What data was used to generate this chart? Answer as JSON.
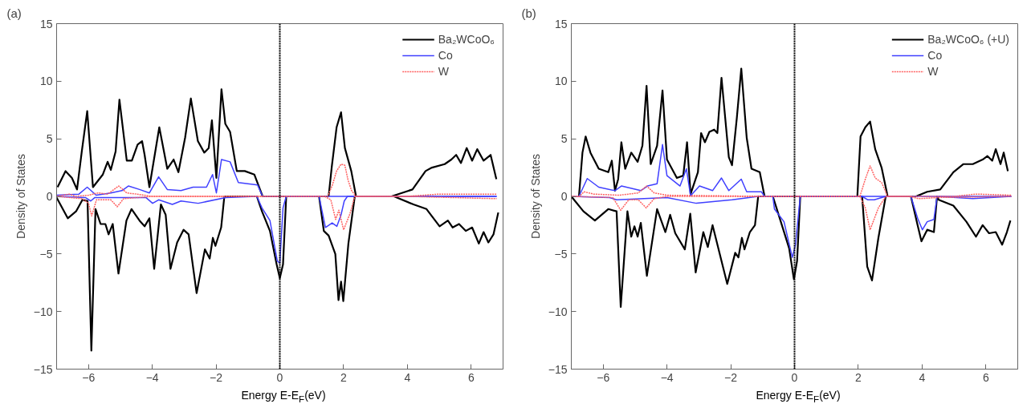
{
  "chart_data": [
    {
      "type": "line",
      "title": "(a)",
      "xlabel": "Energy E-E$_{F}$(eV)",
      "ylabel": "Density of States",
      "xlim": [
        -7,
        7
      ],
      "ylim": [
        -15,
        15
      ],
      "xticks": [
        -6,
        -4,
        -2,
        0,
        2,
        4,
        6
      ],
      "yticks": [
        -15,
        -10,
        -5,
        0,
        5,
        10,
        15
      ],
      "grid": false,
      "legend": "top right",
      "ref_lines": [
        {
          "axis": "x",
          "value": 0,
          "color": "#000000",
          "line_style": "dotted"
        }
      ],
      "series": [
        {
          "name": "Ba₂WCoO₆",
          "color": "#000000",
          "line_style": "solid",
          "x": [
            -6.97,
            -6.72,
            -6.52,
            -6.36,
            -6.21,
            -6.04,
            -5.86,
            -5.55,
            -5.4,
            -5.3,
            -5.15,
            -5.03,
            -4.8,
            -4.64,
            -4.46,
            -4.32,
            -4.24,
            -4.09,
            -3.78,
            -3.53,
            -3.33,
            -3.18,
            -2.97,
            -2.79,
            -2.57,
            -2.37,
            -2.23,
            -2.13,
            -1.99,
            -1.83,
            -1.71,
            -1.56,
            -1.35,
            -1.1,
            -0.8,
            -0.54,
            1.53,
            1.63,
            1.78,
            1.92,
            2.04,
            2.24,
            2.39,
            3.5,
            4.16,
            4.57,
            4.77,
            5.17,
            5.38,
            5.53,
            5.68,
            5.86,
            6.03,
            6.19,
            6.39,
            6.61,
            6.79
          ],
          "values": [
            0.8,
            2.2,
            1.6,
            0.6,
            3.9,
            7.4,
            0.8,
            1.9,
            3.0,
            2.3,
            3.9,
            8.4,
            3.1,
            3.1,
            4.5,
            4.8,
            3.6,
            0.8,
            6.0,
            2.4,
            3.2,
            2.1,
            5.1,
            8.5,
            4.8,
            3.8,
            4.2,
            6.6,
            1.6,
            9.3,
            6.3,
            5.6,
            2.2,
            2.2,
            1.9,
            0,
            0,
            2.6,
            6.0,
            7.3,
            4.2,
            2.2,
            0,
            0,
            0.6,
            2.2,
            2.5,
            2.8,
            3.2,
            3.6,
            2.9,
            4.2,
            3.1,
            4.1,
            3.1,
            3.6,
            1.5
          ]
        },
        {
          "color": "#000000",
          "line_style": "solid",
          "x": [
            -7.0,
            -6.65,
            -6.39,
            -6.19,
            -6.03,
            -5.91,
            -5.78,
            -5.62,
            -5.47,
            -5.37,
            -5.24,
            -5.06,
            -4.81,
            -4.65,
            -4.4,
            -4.24,
            -4.09,
            -3.94,
            -3.73,
            -3.58,
            -3.43,
            -3.22,
            -3.02,
            -2.86,
            -2.61,
            -2.35,
            -2.2,
            -2.1,
            -2.02,
            -1.84,
            -1.74,
            -0.72,
            -0.56,
            -0.31,
            -0.1,
            0.0,
            0.1,
            0.2,
            1.23,
            1.38,
            1.53,
            1.74,
            1.84,
            1.92,
            1.99,
            2.15,
            2.35,
            3.58,
            4.19,
            4.6,
            5.01,
            5.27,
            5.42,
            5.62,
            5.83,
            6.03,
            6.24,
            6.39,
            6.54,
            6.7,
            6.85
          ],
          "values": [
            -0.1,
            -1.9,
            -1.3,
            -0.3,
            -0.4,
            -13.4,
            -1.1,
            -2.4,
            -2.4,
            -3.3,
            -2.4,
            -6.7,
            -2.1,
            -1.1,
            -2.1,
            -2.6,
            -1.9,
            -6.3,
            -0.7,
            -1.6,
            -6.3,
            -4.0,
            -2.9,
            -3.3,
            -8.4,
            -4.6,
            -5.4,
            -3.6,
            -4.3,
            -2.7,
            0,
            0,
            -1.3,
            -3.0,
            -5.9,
            -7.1,
            -5.9,
            0,
            0,
            -3.0,
            -3.4,
            -5.0,
            -9.0,
            -7.4,
            -9.1,
            -4.1,
            0,
            0,
            -0.7,
            -1.1,
            -2.6,
            -2.1,
            -2.7,
            -2.4,
            -3.0,
            -2.7,
            -4.1,
            -3.1,
            -4.0,
            -3.3,
            -1.4
          ]
        },
        {
          "name": "Co",
          "color": "#4040ff",
          "line_style": "solid",
          "x": [
            -7,
            -6.3,
            -6.04,
            -5.76,
            -5.3,
            -4.95,
            -4.75,
            -4.4,
            -4.09,
            -3.8,
            -3.53,
            -3.1,
            -2.72,
            -2.3,
            -2.11,
            -1.99,
            -1.83,
            -1.56,
            -1.3,
            -0.7,
            -0.54,
            6.8
          ],
          "values": [
            0.1,
            0.2,
            0.8,
            0.1,
            0.3,
            0.5,
            0.9,
            0.6,
            0.3,
            1.7,
            0.6,
            0.5,
            0.8,
            0.8,
            1.9,
            0.3,
            3.2,
            3.0,
            1.2,
            1.0,
            0,
            0
          ]
        },
        {
          "color": "#4040ff",
          "line_style": "solid",
          "x": [
            -7,
            -6.1,
            -5.93,
            -5.8,
            -4.2,
            -3.99,
            -3.8,
            -3.37,
            -3.1,
            -2.56,
            -1.7,
            -0.72,
            -0.56,
            -0.31,
            -0.08,
            0.0,
            0.1,
            0.2,
            1.23,
            1.43,
            1.64,
            1.79,
            1.92,
            2.02,
            2.12,
            6.8
          ],
          "values": [
            0,
            -0.1,
            -0.4,
            -0.1,
            -0.1,
            -0.6,
            -0.3,
            -0.7,
            -0.4,
            -0.6,
            -0.1,
            0,
            -1.0,
            -2.1,
            -5.6,
            -5.8,
            -1.0,
            0,
            0,
            -2.7,
            -2.3,
            -2.6,
            -1.6,
            -0.4,
            0,
            0
          ]
        },
        {
          "name": "W",
          "color": "#ff6060",
          "line_style": "dotted",
          "x": [
            -7,
            -6.6,
            -6.4,
            -6.0,
            -5.7,
            -5.4,
            -5.05,
            -4.8,
            -4.5,
            -4.0,
            -1.0,
            1.5,
            1.65,
            1.78,
            1.92,
            2.04,
            2.14,
            2.25,
            2.39,
            4.0,
            5.0,
            6.0,
            6.8
          ],
          "values": [
            0,
            0.2,
            0,
            0.1,
            0.3,
            0.2,
            0.9,
            0.3,
            0.2,
            0,
            0,
            0,
            1.0,
            2.2,
            2.8,
            2.7,
            1.4,
            0.5,
            0,
            0,
            0.2,
            0.2,
            0.2
          ]
        },
        {
          "color": "#ff6060",
          "line_style": "dotted",
          "x": [
            -7,
            -6.2,
            -6.0,
            -5.9,
            -5.75,
            -5.3,
            -5.1,
            -4.9,
            -4.0,
            1.4,
            1.6,
            1.75,
            1.85,
            2.0,
            2.2,
            2.35,
            4.0,
            6.8
          ],
          "values": [
            0,
            -0.2,
            -0.6,
            -1.7,
            -0.3,
            -0.3,
            -0.9,
            -0.2,
            0,
            0,
            -0.3,
            -2.0,
            -1.2,
            -2.9,
            -1.5,
            0,
            0,
            -0.2
          ]
        }
      ]
    },
    {
      "type": "line",
      "title": "(b)",
      "xlabel": "Energy E-E$_{F}$(eV)",
      "ylabel": "Density of States",
      "xlim": [
        -7,
        7
      ],
      "ylim": [
        -15,
        15
      ],
      "xticks": [
        -6,
        -4,
        -2,
        0,
        2,
        4,
        6
      ],
      "yticks": [
        -15,
        -10,
        -5,
        0,
        5,
        10,
        15
      ],
      "grid": false,
      "legend": "top right",
      "ref_lines": [
        {
          "axis": "x",
          "value": 0,
          "color": "#000000",
          "line_style": "dotted"
        }
      ],
      "series": [
        {
          "name": "Ba₂WCoO₆ (+U)",
          "color": "#000000",
          "line_style": "solid",
          "x": [
            -6.76,
            -6.65,
            -6.55,
            -6.4,
            -6.14,
            -5.84,
            -5.73,
            -5.63,
            -5.53,
            -5.43,
            -5.31,
            -5.12,
            -4.92,
            -4.77,
            -4.64,
            -4.51,
            -4.31,
            -4.14,
            -4.0,
            -3.69,
            -3.49,
            -3.37,
            -3.26,
            -3.03,
            -2.93,
            -2.81,
            -2.67,
            -2.52,
            -2.42,
            -2.29,
            -2.06,
            -1.96,
            -1.81,
            -1.67,
            -1.5,
            -1.35,
            -1.09,
            -0.94,
            1.97,
            2.07,
            2.22,
            2.37,
            2.53,
            2.73,
            2.92,
            3.81,
            4.16,
            4.57,
            4.98,
            5.29,
            5.59,
            5.9,
            6.05,
            6.2,
            6.31,
            6.46,
            6.56,
            6.69
          ],
          "values": [
            0,
            3.8,
            5.2,
            3.8,
            2.4,
            2.1,
            3.1,
            0.5,
            1.5,
            4.7,
            2.4,
            3.8,
            3.0,
            4.4,
            9.6,
            2.8,
            4.4,
            9.2,
            3.2,
            1.6,
            1.8,
            4.7,
            0.2,
            2.1,
            5.5,
            4.7,
            5.6,
            5.8,
            5.5,
            10.3,
            3.4,
            2.7,
            6.8,
            11.1,
            5.1,
            2.4,
            2.1,
            0,
            0,
            5.2,
            6.0,
            6.5,
            4.1,
            2.5,
            0,
            0,
            0.4,
            0.6,
            2.1,
            2.8,
            2.8,
            3.2,
            3.5,
            3.1,
            4.1,
            2.8,
            3.8,
            2.2
          ]
        },
        {
          "color": "#000000",
          "line_style": "solid",
          "x": [
            -7.0,
            -6.62,
            -6.26,
            -5.84,
            -5.58,
            -5.45,
            -5.24,
            -5.12,
            -5.02,
            -4.92,
            -4.82,
            -4.63,
            -4.31,
            -4.05,
            -3.9,
            -3.74,
            -3.44,
            -3.27,
            -3.1,
            -2.86,
            -2.72,
            -2.57,
            -2.11,
            -1.86,
            -1.76,
            -1.65,
            -1.57,
            -1.4,
            -1.24,
            -1.14,
            -0.68,
            -0.43,
            -0.17,
            -0.02,
            0.08,
            0.18,
            2.12,
            2.28,
            2.43,
            2.63,
            2.86,
            3.65,
            3.86,
            3.98,
            4.16,
            4.37,
            4.47,
            4.52,
            4.98,
            5.39,
            5.69,
            5.9,
            6.1,
            6.31,
            6.51,
            6.66,
            6.77
          ],
          "values": [
            0,
            -1.3,
            -2.1,
            -1.1,
            -1.3,
            -9.6,
            -1.3,
            -3.5,
            -2.6,
            -3.5,
            -2.3,
            -6.9,
            -1.1,
            -3.1,
            -1.6,
            -3.2,
            -4.6,
            -1.5,
            -6.6,
            -3.1,
            -4.4,
            -2.5,
            -7.6,
            -4.9,
            -5.3,
            -3.6,
            -4.6,
            -3.1,
            -2.5,
            0,
            0,
            -2.2,
            -4.5,
            -7.2,
            -5.6,
            0,
            0,
            -6.1,
            -7.3,
            -3.6,
            0,
            0,
            -2.5,
            -3.9,
            -2.9,
            -3.1,
            0,
            -0.3,
            -0.8,
            -2.2,
            -3.5,
            -2.5,
            -3.2,
            -3.1,
            -4.2,
            -3.1,
            -2.1
          ]
        },
        {
          "name": "Co",
          "color": "#4040ff",
          "line_style": "solid",
          "x": [
            -6.76,
            -6.5,
            -6.14,
            -5.63,
            -5.43,
            -4.82,
            -4.61,
            -4.31,
            -4.14,
            -4.0,
            -3.59,
            -3.39,
            -3.26,
            -2.98,
            -2.57,
            -2.29,
            -2.06,
            -1.67,
            -1.5,
            -1.04,
            -0.94,
            6.8
          ],
          "values": [
            0,
            1.55,
            0.8,
            0.5,
            0.9,
            0.5,
            0.9,
            1.1,
            4.5,
            1.8,
            0.9,
            2.4,
            0.05,
            0.9,
            0.5,
            1.6,
            0.5,
            1.5,
            0.4,
            0.4,
            0,
            0
          ]
        },
        {
          "color": "#4040ff",
          "line_style": "solid",
          "x": [
            -7,
            -5.8,
            -5.58,
            -4.0,
            -3.08,
            -1.96,
            -1.14,
            -0.68,
            -0.63,
            -0.33,
            -0.07,
            0.03,
            0.18,
            2.12,
            2.3,
            2.5,
            2.86,
            3.65,
            3.86,
            4.01,
            4.16,
            4.37,
            4.47,
            5.59,
            6.8
          ],
          "values": [
            0,
            -0.1,
            -0.3,
            -0.1,
            -0.6,
            -0.3,
            0,
            0,
            -1.1,
            -2.2,
            -5.3,
            -4.2,
            0,
            0,
            -0.3,
            -0.3,
            0,
            0,
            -1.9,
            -2.9,
            -2.2,
            -2.0,
            0,
            -0.2,
            0
          ]
        },
        {
          "name": "W",
          "color": "#ff6060",
          "line_style": "dotted",
          "x": [
            -7,
            -6.75,
            -6.6,
            -6.3,
            -5.5,
            -4.9,
            -4.64,
            -4.4,
            -4.0,
            -1.0,
            2.05,
            2.22,
            2.37,
            2.53,
            2.73,
            2.92,
            5.0,
            5.7,
            6.8
          ],
          "values": [
            0,
            0,
            0.4,
            0.2,
            0.1,
            0.3,
            0.9,
            0.3,
            0.1,
            0,
            0,
            1.5,
            2.65,
            1.6,
            1.2,
            0,
            0,
            0.2,
            0.1
          ]
        },
        {
          "color": "#ff6060",
          "line_style": "dotted",
          "x": [
            -7,
            -5.7,
            -5.45,
            -5.2,
            -4.9,
            -4.65,
            -4.4,
            -4.0,
            2.05,
            2.22,
            2.37,
            2.63,
            2.86,
            3.6,
            3.9,
            4.5,
            6.8
          ],
          "values": [
            0,
            -0.1,
            -1.2,
            -0.3,
            -0.3,
            -1.0,
            -0.2,
            0,
            0,
            -1.0,
            -2.9,
            -1.0,
            0,
            0,
            -0.2,
            -0.1,
            0
          ]
        }
      ]
    }
  ]
}
